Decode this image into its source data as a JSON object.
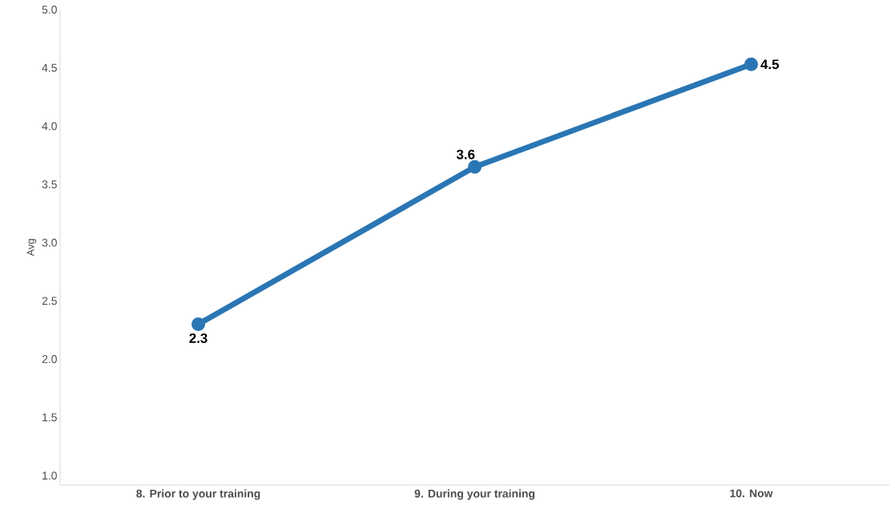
{
  "chart_data": {
    "type": "line",
    "ylabel": "Avg",
    "categories": [
      "8. Prior to your training",
      "9. During your training",
      "10. Now"
    ],
    "series": [
      {
        "color": "#2a76b4",
        "values": [
          2.3,
          3.65,
          4.53
        ],
        "value_labels": [
          "2.3",
          "3.6",
          "4.5"
        ]
      }
    ],
    "ylim": [
      0.92,
      5.0
    ],
    "yticks": [
      {
        "value": 1,
        "label": "1.0"
      },
      1.5,
      {
        "value": 2,
        "label": "2.0"
      },
      2.5,
      {
        "value": 3,
        "label": "3.0"
      },
      3.5,
      {
        "value": 4,
        "label": "4.0"
      },
      4.5,
      {
        "value": 5,
        "label": "5.0"
      }
    ],
    "marker": "circle",
    "line_style": "solid",
    "grid": false
  }
}
